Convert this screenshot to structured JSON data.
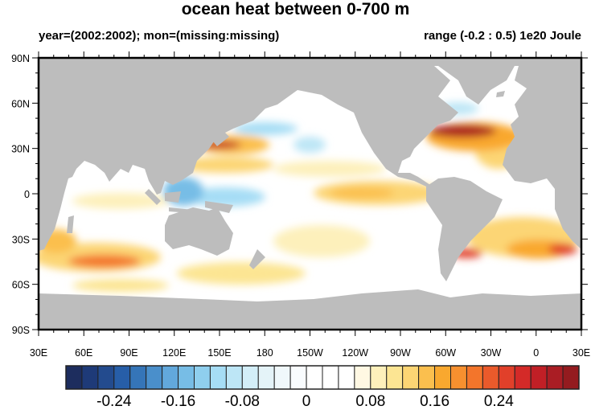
{
  "title": "ocean heat between 0-700 m",
  "subtitle_left": "year=(2002:2002); mon=(missing:missing)",
  "subtitle_right": "range (-0.2 : 0.5) 1e20 Joule",
  "map": {
    "x_labels": [
      "30E",
      "60E",
      "90E",
      "120E",
      "150E",
      "180",
      "150W",
      "120W",
      "90W",
      "60W",
      "30W",
      "0",
      "30E"
    ],
    "y_labels": [
      "90N",
      "60N",
      "30N",
      "0",
      "30S",
      "60S",
      "90S"
    ],
    "land_color": "#bdbdbd",
    "ocean_color": "#ffffff"
  },
  "colorbar": {
    "labels": [
      "-0.24",
      "-0.16",
      "-0.08",
      "0",
      "0.08",
      "0.16",
      "0.24"
    ],
    "colors": [
      "#1d2d5e",
      "#1e3a78",
      "#234b8e",
      "#275ea8",
      "#3575b8",
      "#4a8fcb",
      "#62a8dc",
      "#77bde6",
      "#8fcfee",
      "#a6ddf5",
      "#bde6f6",
      "#d3eef8",
      "#e4f3f8",
      "#f0f8fb",
      "#f9fcfe",
      "#ffffff",
      "#ffffff",
      "#ffffff",
      "#fff8e3",
      "#fdf0bb",
      "#fce593",
      "#fcd574",
      "#fbbf4e",
      "#f9a82f",
      "#f7902f",
      "#f3752b",
      "#ea5a2b",
      "#e1402a",
      "#d42a28",
      "#c11f26",
      "#aa1d24",
      "#941b1f"
    ]
  }
}
